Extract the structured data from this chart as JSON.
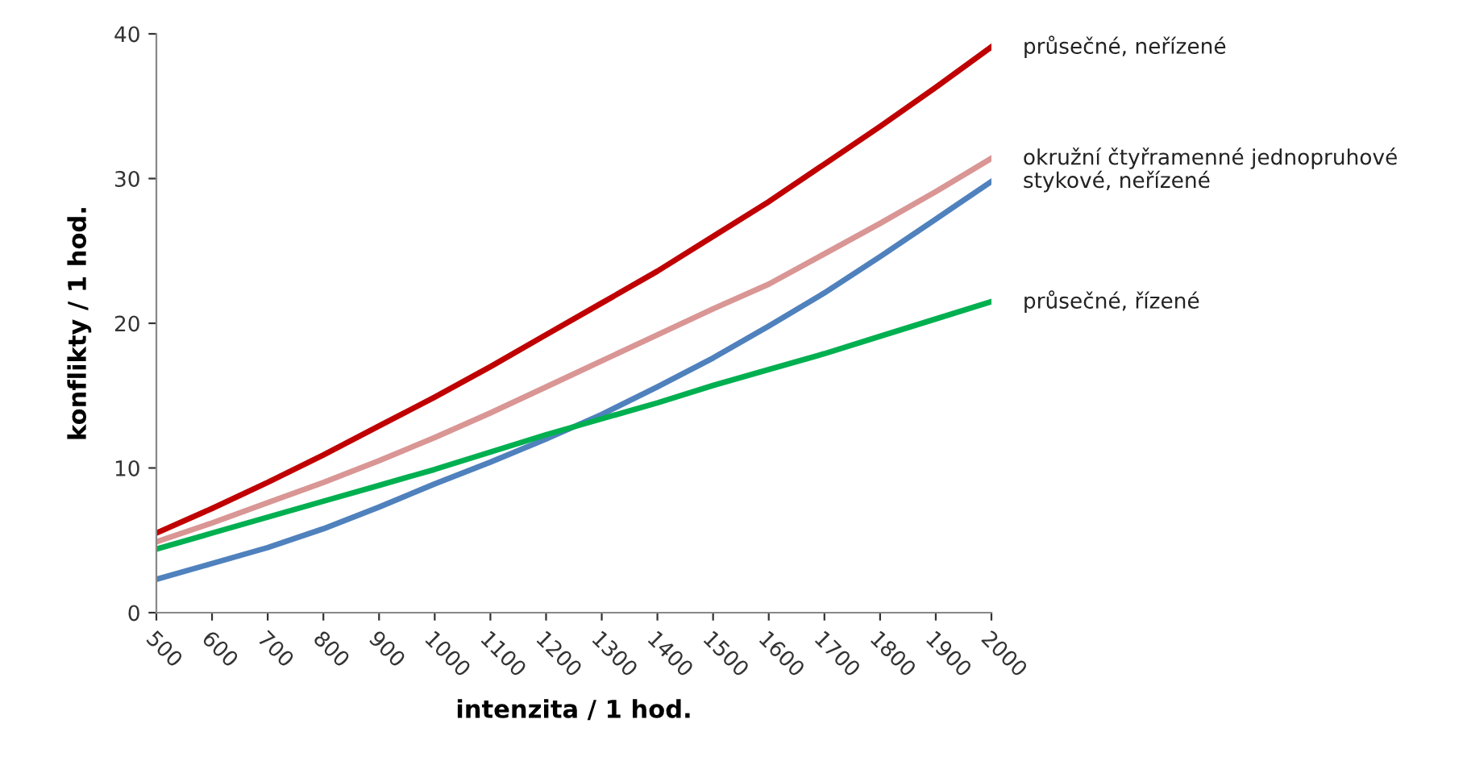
{
  "chart_data": {
    "type": "line",
    "xlabel": "intenzita / 1 hod.",
    "ylabel": "konflikty / 1 hod.",
    "x": [
      500,
      600,
      700,
      800,
      900,
      1000,
      1100,
      1200,
      1300,
      1400,
      1500,
      1600,
      1700,
      1800,
      1900,
      2000
    ],
    "xlim": [
      500,
      2000
    ],
    "xticks": [
      500,
      600,
      700,
      800,
      900,
      1000,
      1100,
      1200,
      1300,
      1400,
      1500,
      1600,
      1700,
      1800,
      1900,
      2000
    ],
    "ylim": [
      0,
      40
    ],
    "yticks": [
      0,
      10,
      20,
      30,
      40
    ],
    "grid": false,
    "legend": false,
    "marker": "none",
    "line_style": "solid",
    "series": [
      {
        "name": "průsečné, neřízené",
        "color": "#c00000",
        "values": [
          5.5,
          7.2,
          9.0,
          10.9,
          12.9,
          14.9,
          17.0,
          19.2,
          21.4,
          23.6,
          26.0,
          28.4,
          31.0,
          33.6,
          36.3,
          39.1
        ]
      },
      {
        "name": "okružní čtyřramenné jednopruhové",
        "color": "#d99694",
        "values": [
          4.9,
          6.2,
          7.6,
          9.0,
          10.5,
          12.1,
          13.8,
          15.6,
          17.4,
          19.2,
          21.0,
          22.7,
          24.8,
          26.9,
          29.1,
          31.4
        ]
      },
      {
        "name": "stykové, neřízené",
        "color": "#4f81bd",
        "values": [
          2.3,
          3.4,
          4.5,
          5.8,
          7.3,
          8.9,
          10.4,
          12.0,
          13.7,
          15.6,
          17.6,
          19.8,
          22.1,
          24.6,
          27.2,
          29.8
        ]
      },
      {
        "name": "průsečné, řízené",
        "color": "#00b050",
        "values": [
          4.4,
          5.5,
          6.6,
          7.7,
          8.8,
          9.9,
          11.1,
          12.3,
          13.4,
          14.5,
          15.7,
          16.8,
          17.9,
          19.1,
          20.3,
          21.5
        ]
      }
    ]
  }
}
